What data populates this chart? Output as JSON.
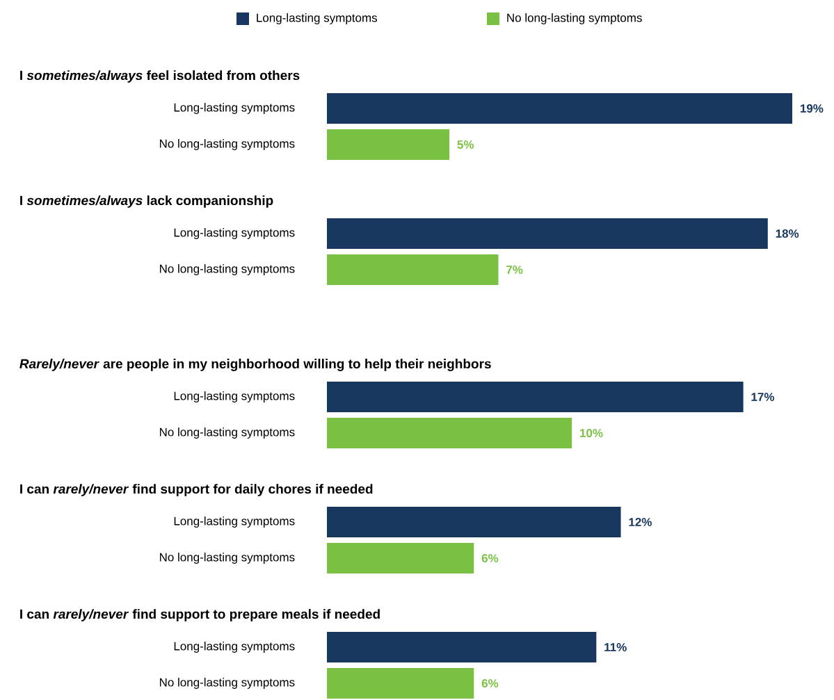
{
  "chart_data": {
    "type": "bar",
    "orientation": "horizontal",
    "legend": "top",
    "categories": [
      "I *sometimes/always* feel isolated from others",
      "I *sometimes/always* lack companionship",
      "*Rarely/never* are people in my neighborhood willing to help their neighbors",
      "I can *rarely/never* find support for daily chores if needed",
      "I can *rarely/never* find support to prepare meals if needed"
    ],
    "series": [
      {
        "name": "Long-lasting symptoms",
        "color": "#17375e",
        "values": [
          19,
          18,
          17,
          12,
          11
        ],
        "value_labels": [
          "19%",
          "18%",
          "17%",
          "12%",
          "11%"
        ]
      },
      {
        "name": "No long-lasting symptoms",
        "color": "#7ac143",
        "values": [
          5,
          7,
          10,
          6,
          6
        ],
        "value_labels": [
          "5%",
          "7%",
          "10%",
          "6%",
          "6%"
        ]
      }
    ]
  }
}
